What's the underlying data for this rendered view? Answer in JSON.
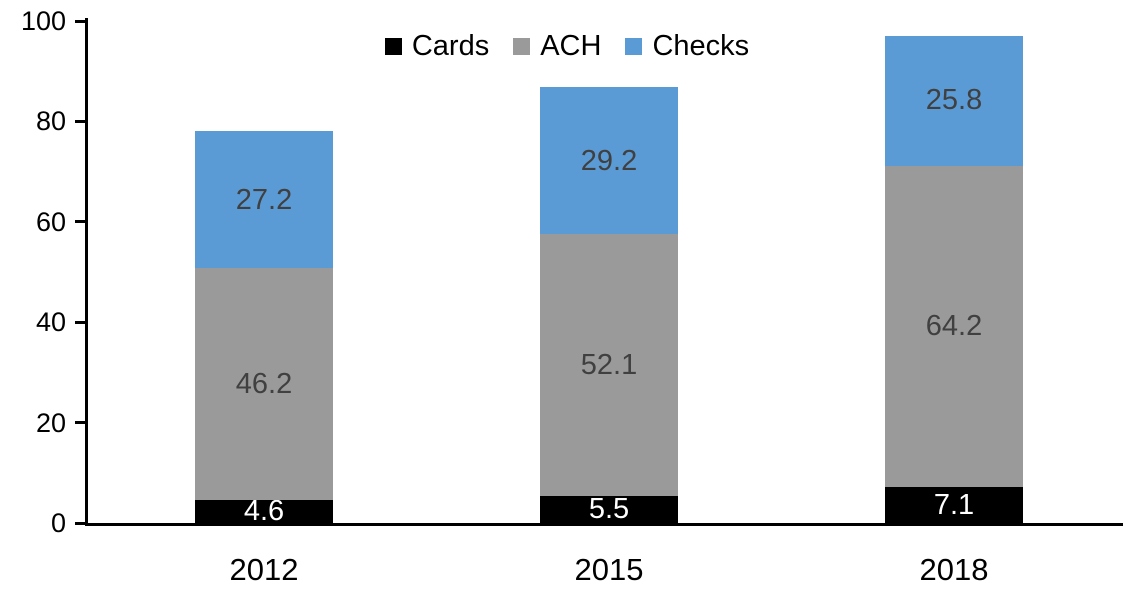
{
  "chart_data": {
    "type": "bar",
    "stacked": true,
    "title": "",
    "xlabel": "",
    "ylabel": "",
    "categories": [
      "2012",
      "2015",
      "2018"
    ],
    "series": [
      {
        "name": "Cards",
        "color": "#000000",
        "label_color": "#ffffff",
        "values": [
          4.6,
          5.5,
          7.1
        ]
      },
      {
        "name": "ACH",
        "color": "#9a9a9a",
        "label_color": "#404040",
        "values": [
          46.2,
          52.1,
          64.2
        ]
      },
      {
        "name": "Checks",
        "color": "#5b9bd5",
        "label_color": "#404040",
        "values": [
          27.2,
          29.2,
          25.8
        ]
      }
    ],
    "stack_totals": [
      78.0,
      86.8,
      97.1
    ],
    "ylim": [
      0,
      100
    ],
    "yticks": [
      0,
      20,
      40,
      60,
      80,
      100
    ],
    "grid": false,
    "data_labels": true,
    "legend_position": "top-center",
    "axis_color": "#000000",
    "background_color": "#ffffff"
  }
}
